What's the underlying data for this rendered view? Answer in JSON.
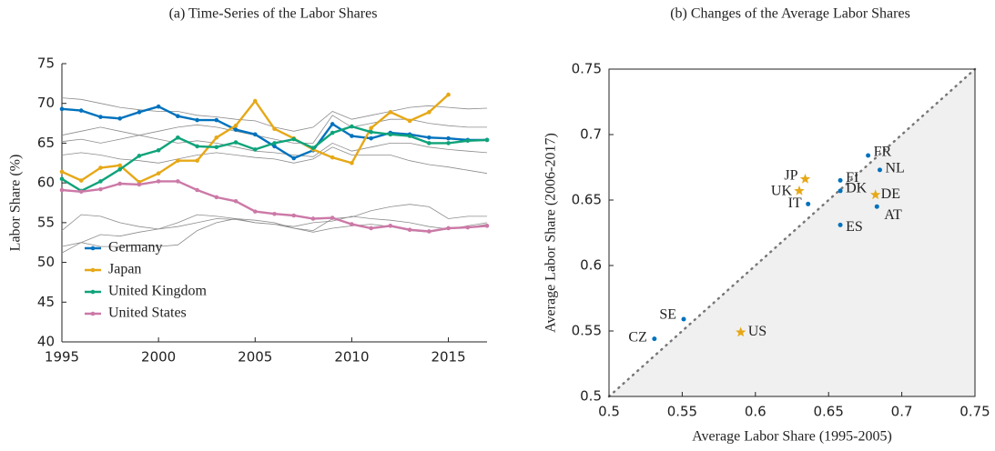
{
  "chart_data": [
    {
      "type": "line",
      "title": "(a) Time-Series of the Labor Shares",
      "ylabel": "Labor Share (%)",
      "x": [
        1995,
        1996,
        1997,
        1998,
        1999,
        2000,
        2001,
        2002,
        2003,
        2004,
        2005,
        2006,
        2007,
        2008,
        2009,
        2010,
        2011,
        2012,
        2013,
        2014,
        2015,
        2016,
        2017
      ],
      "xlim": [
        1995,
        2017
      ],
      "xticks": [
        1995,
        2000,
        2005,
        2010,
        2015
      ],
      "ylim": [
        40,
        75
      ],
      "yticks": [
        40,
        45,
        50,
        55,
        60,
        65,
        70,
        75
      ],
      "legend": "lower left",
      "series": [
        {
          "color": "#8c8c8c",
          "values": [
            70.7,
            70.5,
            70,
            69.5,
            69.2,
            69,
            69,
            68.5,
            68.3,
            68,
            67.8,
            67,
            66.5,
            67,
            69,
            68,
            68.5,
            69,
            69.5,
            69.7,
            69.5,
            69.3,
            69.4
          ]
        },
        {
          "color": "#8c8c8c",
          "values": [
            65.2,
            65.5,
            65,
            65.5,
            66,
            66.5,
            67,
            67.3,
            67,
            66.5,
            66,
            65.5,
            65,
            65,
            68.5,
            67,
            67.5,
            68,
            68,
            67.5,
            67.2,
            67,
            67
          ]
        },
        {
          "color": "#8c8c8c",
          "values": [
            66,
            66.5,
            67,
            66.5,
            66,
            65.5,
            65,
            65.3,
            65,
            64.5,
            64,
            63.8,
            63.5,
            63.3,
            65,
            64,
            64.5,
            65,
            65,
            64.5,
            64.2,
            64,
            63.8
          ]
        },
        {
          "color": "#8c8c8c",
          "values": [
            63.5,
            63.8,
            63.5,
            63,
            62.8,
            62.5,
            63,
            63.5,
            63.8,
            63.5,
            63.2,
            63,
            62.5,
            63,
            64.5,
            63.5,
            63.5,
            63.5,
            62.8,
            62.3,
            62,
            61.6,
            61.2
          ]
        },
        {
          "color": "#8c8c8c",
          "values": [
            54,
            56,
            55.8,
            55,
            54.5,
            54.2,
            55,
            56,
            55.8,
            55.5,
            55,
            54.8,
            54.3,
            54,
            55.5,
            55.7,
            56.5,
            57,
            57.3,
            57,
            55.5,
            55.8,
            55.8
          ]
        },
        {
          "color": "#8c8c8c",
          "values": [
            51.2,
            52.5,
            53.5,
            53.3,
            53.8,
            54.2,
            54.5,
            55,
            55.5,
            55.4,
            55,
            54.8,
            54.5,
            55,
            55.2,
            55.8,
            55.5,
            55.3,
            55,
            54.5,
            54.2,
            54.4,
            54.8
          ]
        },
        {
          "color": "#8c8c8c",
          "values": [
            52,
            52.5,
            52,
            52,
            52.2,
            52,
            52.2,
            54,
            55,
            55.5,
            55.3,
            55,
            54.3,
            53.8,
            54.3,
            54.6,
            54.8,
            54.5,
            54,
            53.8,
            54.2,
            54.6,
            55
          ]
        },
        {
          "name": "Germany",
          "color": "#0072bd",
          "values": [
            69.3,
            69.1,
            68.3,
            68.1,
            68.9,
            69.6,
            68.4,
            67.9,
            67.9,
            66.7,
            66.1,
            64.6,
            63.1,
            64.1,
            67.4,
            65.9,
            65.6,
            66.3,
            66.1,
            65.7,
            65.6,
            65.4,
            65.4
          ]
        },
        {
          "name": "Japan",
          "color": "#e6a817",
          "values": [
            61.4,
            60.3,
            61.9,
            62.2,
            60.1,
            61.2,
            62.8,
            62.8,
            65.7,
            67.2,
            70.3,
            66.8,
            65.6,
            64.2,
            63.2,
            62.5,
            66.9,
            68.9,
            67.8,
            68.9,
            71.1,
            null,
            null
          ]
        },
        {
          "name": "United Kingdom",
          "color": "#0fa37a",
          "values": [
            60.5,
            59.0,
            60.2,
            61.7,
            63.4,
            64.1,
            65.7,
            64.6,
            64.5,
            65.1,
            64.2,
            65.0,
            65.5,
            64.4,
            66.3,
            67.1,
            66.4,
            66.1,
            65.9,
            65.0,
            65.0,
            65.3,
            65.4
          ]
        },
        {
          "name": "United States",
          "color": "#cc79a7",
          "values": [
            59.1,
            58.9,
            59.2,
            59.9,
            59.8,
            60.2,
            60.2,
            59.1,
            58.2,
            57.7,
            56.4,
            56.1,
            55.9,
            55.5,
            55.6,
            54.8,
            54.3,
            54.6,
            54.1,
            53.9,
            54.3,
            54.4,
            54.6
          ]
        }
      ]
    },
    {
      "type": "scatter",
      "title": "(b) Changes of the Average Labor Shares",
      "xlabel": "Average Labor Share (1995-2005)",
      "ylabel": "Average Labor Share (2006-2017)",
      "xlim": [
        0.5,
        0.75
      ],
      "xticks": [
        0.5,
        0.55,
        0.6,
        0.65,
        0.7,
        0.75
      ],
      "ylim": [
        0.5,
        0.75
      ],
      "yticks": [
        0.5,
        0.55,
        0.6,
        0.65,
        0.7,
        0.75
      ],
      "series": [
        {
          "marker": "circle",
          "color": "#0072bd",
          "labels": [
            "FR",
            "NL",
            "FI",
            "DK",
            "IT",
            "ES",
            "AT",
            "SE",
            "CZ"
          ],
          "x": [
            0.677,
            0.685,
            0.658,
            0.658,
            0.636,
            0.658,
            0.683,
            0.551,
            0.531
          ],
          "y": [
            0.684,
            0.673,
            0.665,
            0.657,
            0.647,
            0.631,
            0.645,
            0.559,
            0.544
          ]
        },
        {
          "marker": "star",
          "color": "#e6a817",
          "labels": [
            "DE",
            "JP",
            "UK",
            "US"
          ],
          "x": [
            0.682,
            0.634,
            0.63,
            0.59
          ],
          "y": [
            0.654,
            0.666,
            0.657,
            0.549
          ]
        }
      ]
    }
  ]
}
